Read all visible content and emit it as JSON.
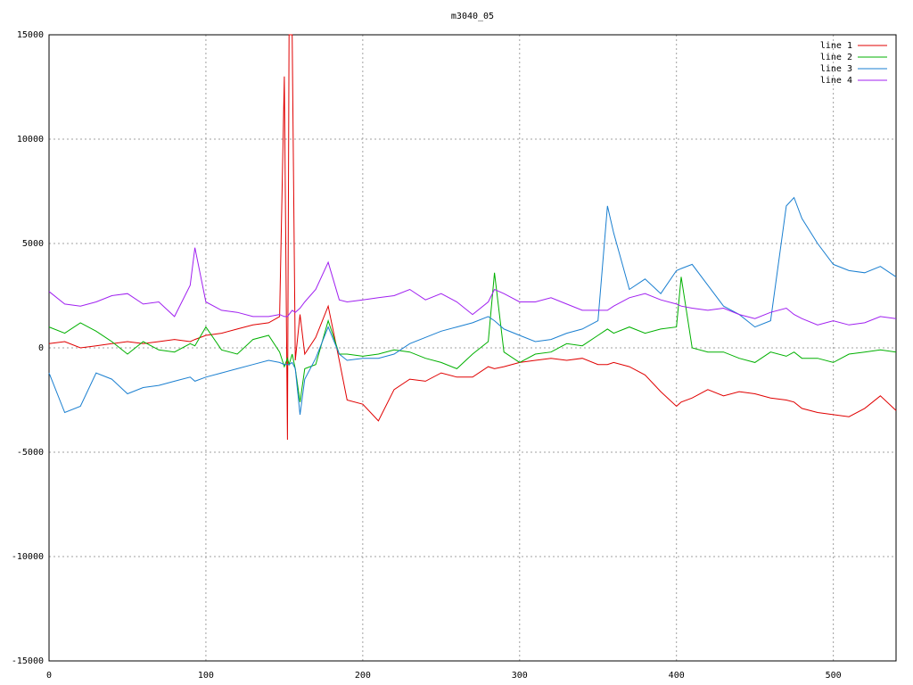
{
  "chart_data": {
    "type": "line",
    "title": "m3040_05",
    "x": [
      0,
      10,
      20,
      30,
      40,
      50,
      60,
      70,
      80,
      90,
      93,
      100,
      110,
      120,
      130,
      140,
      147,
      150,
      152,
      153,
      155,
      157,
      160,
      163,
      170,
      178,
      185,
      190,
      200,
      210,
      220,
      230,
      240,
      250,
      260,
      270,
      280,
      284,
      290,
      300,
      310,
      320,
      330,
      340,
      350,
      356,
      360,
      370,
      380,
      390,
      400,
      403,
      410,
      420,
      430,
      440,
      450,
      460,
      470,
      475,
      480,
      490,
      500,
      510,
      520,
      530,
      540
    ],
    "series": [
      {
        "name": "line 1",
        "color": "#e00000",
        "values": [
          200,
          300,
          0,
          100,
          200,
          300,
          200,
          300,
          400,
          300,
          400,
          600,
          700,
          900,
          1100,
          1200,
          1500,
          13000,
          -4400,
          15000,
          15000,
          -600,
          1600,
          -300,
          500,
          2000,
          -600,
          -2500,
          -2700,
          -3500,
          -2000,
          -1500,
          -1600,
          -1200,
          -1400,
          -1400,
          -900,
          -1000,
          -900,
          -700,
          -600,
          -500,
          -600,
          -500,
          -800,
          -800,
          -700,
          -900,
          -1300,
          -2100,
          -2800,
          -2600,
          -2400,
          -2000,
          -2300,
          -2100,
          -2200,
          -2400,
          -2500,
          -2600,
          -2900,
          -3100,
          -3200,
          -3300,
          -2900,
          -2300,
          -3000
        ]
      },
      {
        "name": "line 2",
        "color": "#00b000",
        "values": [
          1000,
          700,
          1200,
          800,
          300,
          -300,
          300,
          -100,
          -200,
          200,
          100,
          1000,
          -100,
          -300,
          400,
          600,
          -200,
          -900,
          -500,
          -800,
          -300,
          -1000,
          -2600,
          -1000,
          -800,
          1300,
          -300,
          -300,
          -400,
          -300,
          -100,
          -200,
          -500,
          -700,
          -1000,
          -300,
          300,
          3600,
          -200,
          -700,
          -300,
          -200,
          200,
          100,
          600,
          900,
          700,
          1000,
          700,
          900,
          1000,
          3400,
          0,
          -200,
          -200,
          -500,
          -700,
          -200,
          -400,
          -200,
          -500,
          -500,
          -700,
          -300,
          -200,
          -100,
          -200
        ]
      },
      {
        "name": "line 3",
        "color": "#1a7fd0",
        "values": [
          -1200,
          -3100,
          -2800,
          -1200,
          -1500,
          -2200,
          -1900,
          -1800,
          -1600,
          -1400,
          -1600,
          -1400,
          -1200,
          -1000,
          -800,
          -600,
          -700,
          -800,
          -800,
          -800,
          -700,
          -1000,
          -3200,
          -1500,
          -500,
          1000,
          -300,
          -600,
          -500,
          -500,
          -300,
          200,
          500,
          800,
          1000,
          1200,
          1500,
          1300,
          900,
          600,
          300,
          400,
          700,
          900,
          1300,
          6800,
          5500,
          2800,
          3300,
          2600,
          3700,
          3800,
          4000,
          3000,
          2000,
          1600,
          1000,
          1300,
          6800,
          7200,
          6200,
          5000,
          4000,
          3700,
          3600,
          3900,
          3400
        ]
      },
      {
        "name": "line 4",
        "color": "#a020f0",
        "values": [
          2700,
          2100,
          2000,
          2200,
          2500,
          2600,
          2100,
          2200,
          1500,
          3000,
          4800,
          2200,
          1800,
          1700,
          1500,
          1500,
          1600,
          1500,
          1500,
          1600,
          1800,
          1700,
          1900,
          2200,
          2800,
          4100,
          2300,
          2200,
          2300,
          2400,
          2500,
          2800,
          2300,
          2600,
          2200,
          1600,
          2200,
          2800,
          2600,
          2200,
          2200,
          2400,
          2100,
          1800,
          1800,
          1800,
          2000,
          2400,
          2600,
          2300,
          2100,
          2000,
          1900,
          1800,
          1900,
          1600,
          1400,
          1700,
          1900,
          1600,
          1400,
          1100,
          1300,
          1100,
          1200,
          1500,
          1400
        ]
      }
    ],
    "xlim": [
      0,
      540
    ],
    "ylim": [
      -15000,
      15000
    ],
    "xticks": [
      0,
      100,
      200,
      300,
      400,
      500
    ],
    "yticks": [
      -15000,
      -10000,
      -5000,
      0,
      5000,
      10000,
      15000
    ],
    "grid": true,
    "legend": "top-right"
  }
}
